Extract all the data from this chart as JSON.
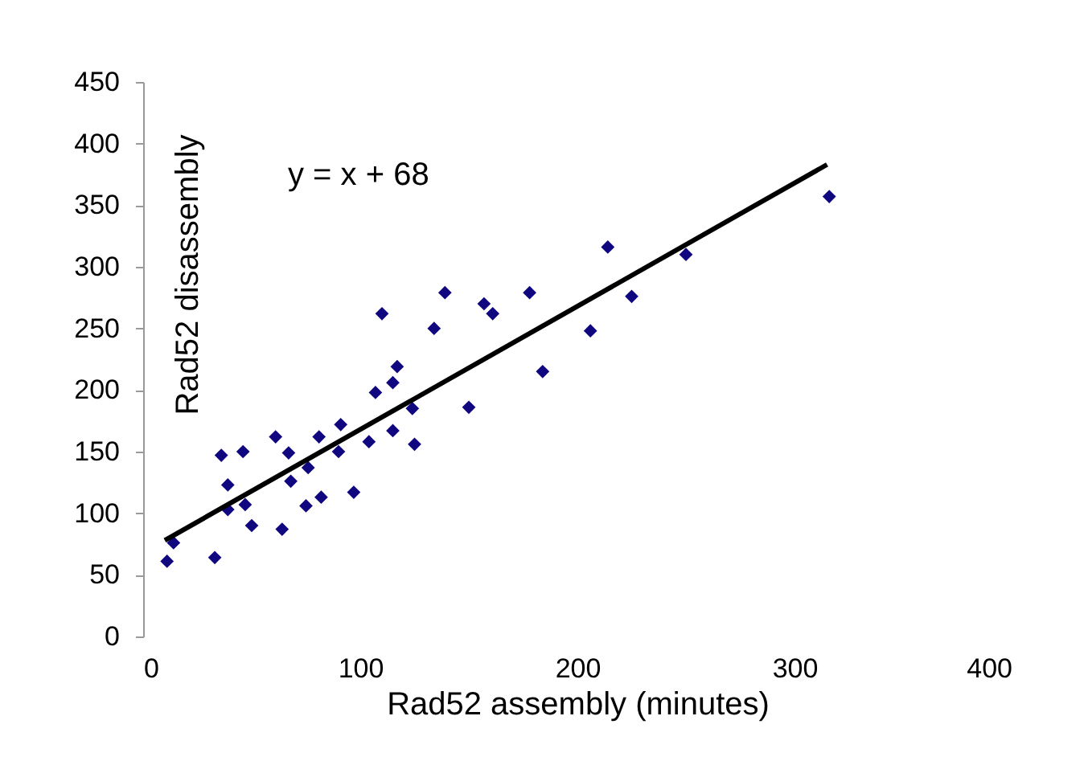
{
  "chart_data": {
    "type": "scatter",
    "xlabel": "Rad52 assembly (minutes)",
    "ylabel": "Rad52 disassembly",
    "xlim": [
      0,
      400
    ],
    "ylim": [
      0,
      450
    ],
    "xticks": [
      0,
      100,
      200,
      300,
      400
    ],
    "yticks": [
      0,
      50,
      100,
      150,
      200,
      250,
      300,
      350,
      400,
      450
    ],
    "grid": false,
    "annotations": [
      "y = x + 68"
    ],
    "series": [
      {
        "marker": "diamond",
        "color": "#10067f",
        "x": [
          11,
          14,
          33,
          36,
          39,
          39,
          47,
          50,
          46,
          61,
          64,
          67,
          68,
          76,
          75,
          82,
          81,
          90,
          91,
          97,
          104,
          107,
          110,
          115,
          117,
          115,
          124,
          125,
          134,
          139,
          150,
          157,
          161,
          178,
          184,
          206,
          214,
          225,
          250,
          316
        ],
        "values": [
          61,
          76,
          64,
          147,
          123,
          103,
          107,
          90,
          150,
          162,
          87,
          149,
          126,
          137,
          106,
          113,
          162,
          150,
          172,
          117,
          158,
          198,
          262,
          206,
          219,
          167,
          185,
          156,
          250,
          279,
          186,
          270,
          262,
          279,
          215,
          248,
          316,
          276,
          310,
          357
        ]
      },
      {
        "type": "line",
        "color": "#000000",
        "x": [
          10,
          315
        ],
        "values": [
          78,
          383
        ]
      }
    ]
  }
}
